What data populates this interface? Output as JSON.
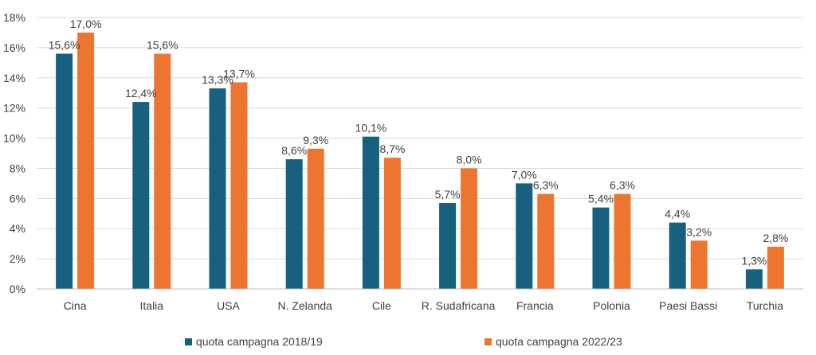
{
  "chart_data": {
    "type": "bar",
    "categories": [
      "Cina",
      "Italia",
      "USA",
      "N. Zelanda",
      "Cile",
      "R. Sudafricana",
      "Francia",
      "Polonia",
      "Paesi Bassi",
      "Turchia"
    ],
    "series": [
      {
        "name": "quota campagna 2018/19",
        "color": "#17607f",
        "values": [
          15.6,
          12.4,
          13.3,
          8.6,
          10.1,
          5.7,
          7.0,
          5.4,
          4.4,
          1.3
        ],
        "labels": [
          "15,6%",
          "12,4%",
          "13,3%",
          "8,6%",
          "10,1%",
          "5,7%",
          "7,0%",
          "5,4%",
          "4,4%",
          "1,3%"
        ]
      },
      {
        "name": "quota campagna 2022/23",
        "color": "#ed7530",
        "values": [
          17.0,
          15.6,
          13.7,
          9.3,
          8.7,
          8.0,
          6.3,
          6.3,
          3.2,
          2.8
        ],
        "labels": [
          "17,0%",
          "15,6%",
          "13,7%",
          "9,3%",
          "8,7%",
          "8,0%",
          "6,3%",
          "6,3%",
          "3,2%",
          "2,8%"
        ]
      }
    ],
    "yticks": [
      "0%",
      "2%",
      "4%",
      "6%",
      "8%",
      "10%",
      "12%",
      "14%",
      "16%",
      "18%"
    ],
    "ylim": [
      0,
      18
    ],
    "grid": true,
    "legend_position": "bottom"
  }
}
